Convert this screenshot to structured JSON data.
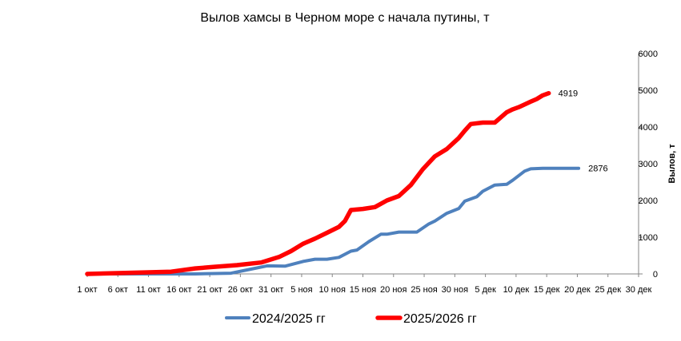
{
  "chart_data": {
    "type": "line",
    "title": "Вылов хамсы в Черном море с начала путины, т",
    "ylabel": "Вылов, т",
    "ylim": [
      0,
      6000
    ],
    "yticks": [
      "0",
      "1000",
      "2000",
      "3000",
      "4000",
      "5000",
      "6000"
    ],
    "y_axis_side": "right",
    "grid": false,
    "legend_position": "bottom",
    "x_tick_labels": [
      "1 окт",
      "6 окт",
      "11 окт",
      "16 окт",
      "21 окт",
      "26 окт",
      "31 окт",
      "5 ноя",
      "10 ноя",
      "15 ноя",
      "20 ноя",
      "25 ноя",
      "30 ноя",
      "5 дек",
      "10 дек",
      "15 дек",
      "20 дек",
      "25 дек",
      "30 дек"
    ],
    "x_day_span": 92,
    "series": [
      {
        "name": "2024/2025 гг",
        "color": "#4F81BD",
        "end_label": "2876",
        "x": [
          0,
          18,
          24,
          27,
          30,
          33,
          36,
          38,
          40,
          42,
          44,
          45,
          47,
          49,
          50,
          52,
          53,
          55,
          57,
          58,
          60,
          62,
          63,
          65,
          66,
          68,
          70,
          71,
          73,
          74,
          76,
          77,
          79,
          80,
          81,
          82
        ],
        "values": [
          0,
          0,
          20,
          120,
          220,
          210,
          340,
          400,
          400,
          450,
          620,
          650,
          880,
          1080,
          1080,
          1140,
          1140,
          1140,
          1360,
          1440,
          1650,
          1780,
          1980,
          2100,
          2250,
          2420,
          2440,
          2550,
          2800,
          2860,
          2876,
          2876,
          2876,
          2876,
          2876,
          2876
        ]
      },
      {
        "name": "2025/2026 гг",
        "color": "#FF0000",
        "end_label": "4919",
        "x": [
          0,
          9,
          14,
          18,
          21,
          25,
          29,
          32,
          34,
          36,
          38,
          40,
          42,
          43,
          44,
          46,
          48,
          50,
          52,
          54,
          56,
          58,
          60,
          62,
          63,
          64,
          66,
          68,
          70,
          71,
          72,
          74,
          75,
          76,
          77
        ],
        "values": [
          0,
          40,
          60,
          150,
          190,
          240,
          310,
          460,
          620,
          820,
          960,
          1120,
          1280,
          1440,
          1740,
          1770,
          1820,
          2000,
          2120,
          2420,
          2850,
          3200,
          3400,
          3700,
          3900,
          4080,
          4120,
          4120,
          4400,
          4480,
          4540,
          4690,
          4760,
          4860,
          4919
        ]
      }
    ]
  }
}
